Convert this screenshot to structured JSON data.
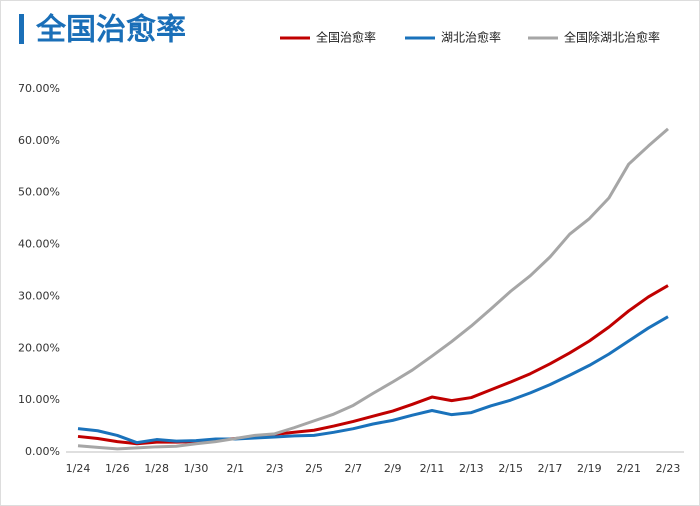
{
  "chart_data": {
    "type": "line",
    "title": "全国治愈率",
    "categories": [
      "1/24",
      null,
      "1/26",
      null,
      "1/28",
      null,
      "1/30",
      null,
      "2/1",
      null,
      "2/3",
      null,
      "2/5",
      null,
      "2/7",
      null,
      "2/9",
      null,
      "2/11",
      null,
      "2/13",
      null,
      "2/15",
      null,
      "2/17",
      null,
      "2/19",
      null,
      "2/21",
      null,
      "2/23"
    ],
    "series": [
      {
        "name": "全国治愈率",
        "color": "#c00000",
        "values": [
          3.0,
          2.6,
          2.0,
          1.6,
          1.9,
          1.9,
          2.0,
          2.3,
          2.6,
          2.9,
          3.4,
          3.8,
          4.2,
          5.0,
          5.9,
          6.9,
          7.9,
          9.2,
          10.6,
          9.9,
          10.5,
          12.0,
          13.5,
          15.1,
          17.0,
          19.1,
          21.4,
          24.1,
          27.2,
          29.9,
          32.1
        ]
      },
      {
        "name": "湖北治愈率",
        "color": "#1a72bb",
        "values": [
          4.5,
          4.1,
          3.2,
          1.8,
          2.4,
          2.1,
          2.2,
          2.5,
          2.5,
          2.7,
          2.9,
          3.1,
          3.2,
          3.8,
          4.5,
          5.4,
          6.1,
          7.1,
          8.0,
          7.2,
          7.6,
          8.9,
          10.0,
          11.4,
          13.0,
          14.8,
          16.7,
          18.9,
          21.4,
          23.9,
          26.1
        ]
      },
      {
        "name": "全国除湖北治愈率",
        "color": "#a6a6a6",
        "values": [
          1.2,
          0.9,
          0.6,
          0.8,
          1.0,
          1.1,
          1.6,
          2.0,
          2.6,
          3.2,
          3.5,
          4.7,
          6.0,
          7.3,
          9.0,
          11.3,
          13.5,
          15.8,
          18.5,
          21.3,
          24.3,
          27.6,
          31.0,
          34.0,
          37.6,
          42.0,
          45.0,
          49.0,
          55.5,
          59.0,
          62.3
        ]
      }
    ],
    "ylim": [
      0,
      70
    ],
    "yticks": [
      {
        "value": 0,
        "label": "0.00%"
      },
      {
        "value": 10,
        "label": "10.00%"
      },
      {
        "value": 20,
        "label": "20.00%"
      },
      {
        "value": 30,
        "label": "30.00%"
      },
      {
        "value": 40,
        "label": "40.00%"
      },
      {
        "value": 50,
        "label": "50.00%"
      },
      {
        "value": 60,
        "label": "60.00%"
      },
      {
        "value": 70,
        "label": "70.00%"
      }
    ],
    "grid": false
  }
}
